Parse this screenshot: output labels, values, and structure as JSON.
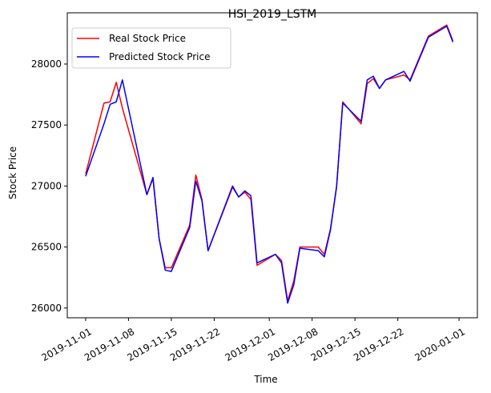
{
  "chart_data": {
    "type": "line",
    "title": "HSI_2019_LSTM",
    "xlabel": "Time",
    "ylabel": "Stock Price",
    "xlim": [
      "2019-10-29",
      "2020-01-04"
    ],
    "ylim": [
      25920,
      28420
    ],
    "xticks": [
      "2019-11-01",
      "2019-11-08",
      "2019-11-15",
      "2019-11-22",
      "2019-12-01",
      "2019-12-08",
      "2019-12-15",
      "2019-12-22",
      "2020-01-01"
    ],
    "yticks": [
      26000,
      26500,
      27000,
      27500,
      28000
    ],
    "legend": "upper-left",
    "grid": false,
    "series": [
      {
        "name": "Real Stock Price",
        "color": "#ff0000",
        "points": [
          [
            "2019-11-01",
            27100
          ],
          [
            "2019-11-04",
            27680
          ],
          [
            "2019-11-05",
            27690
          ],
          [
            "2019-11-06",
            27850
          ],
          [
            "2019-11-07",
            27640
          ],
          [
            "2019-11-11",
            26930
          ],
          [
            "2019-11-12",
            27060
          ],
          [
            "2019-11-13",
            26570
          ],
          [
            "2019-11-14",
            26330
          ],
          [
            "2019-11-15",
            26330
          ],
          [
            "2019-11-18",
            26680
          ],
          [
            "2019-11-19",
            27090
          ],
          [
            "2019-11-20",
            26890
          ],
          [
            "2019-11-21",
            26470
          ],
          [
            "2019-11-25",
            26990
          ],
          [
            "2019-11-26",
            26910
          ],
          [
            "2019-11-27",
            26950
          ],
          [
            "2019-11-28",
            26890
          ],
          [
            "2019-11-29",
            26350
          ],
          [
            "2019-12-02",
            26440
          ],
          [
            "2019-12-03",
            26390
          ],
          [
            "2019-12-04",
            26060
          ],
          [
            "2019-12-05",
            26220
          ],
          [
            "2019-12-06",
            26500
          ],
          [
            "2019-12-09",
            26500
          ],
          [
            "2019-12-10",
            26440
          ],
          [
            "2019-12-11",
            26650
          ],
          [
            "2019-12-12",
            26990
          ],
          [
            "2019-12-13",
            27690
          ],
          [
            "2019-12-16",
            27510
          ],
          [
            "2019-12-17",
            27840
          ],
          [
            "2019-12-18",
            27880
          ],
          [
            "2019-12-19",
            27800
          ],
          [
            "2019-12-20",
            27870
          ],
          [
            "2019-12-23",
            27910
          ],
          [
            "2019-12-24",
            27870
          ],
          [
            "2019-12-27",
            28230
          ],
          [
            "2019-12-30",
            28320
          ],
          [
            "2019-12-31",
            28190
          ]
        ]
      },
      {
        "name": "Predicted Stock Price",
        "color": "#0000ff",
        "points": [
          [
            "2019-11-01",
            27080
          ],
          [
            "2019-11-04",
            27510
          ],
          [
            "2019-11-05",
            27670
          ],
          [
            "2019-11-06",
            27690
          ],
          [
            "2019-11-07",
            27870
          ],
          [
            "2019-11-11",
            26930
          ],
          [
            "2019-11-12",
            27070
          ],
          [
            "2019-11-13",
            26570
          ],
          [
            "2019-11-14",
            26310
          ],
          [
            "2019-11-15",
            26300
          ],
          [
            "2019-11-18",
            26660
          ],
          [
            "2019-11-19",
            27040
          ],
          [
            "2019-11-20",
            26880
          ],
          [
            "2019-11-21",
            26470
          ],
          [
            "2019-11-25",
            27000
          ],
          [
            "2019-11-26",
            26910
          ],
          [
            "2019-11-27",
            26960
          ],
          [
            "2019-11-28",
            26920
          ],
          [
            "2019-11-29",
            26370
          ],
          [
            "2019-12-02",
            26440
          ],
          [
            "2019-12-03",
            26370
          ],
          [
            "2019-12-04",
            26040
          ],
          [
            "2019-12-05",
            26190
          ],
          [
            "2019-12-06",
            26490
          ],
          [
            "2019-12-09",
            26470
          ],
          [
            "2019-12-10",
            26420
          ],
          [
            "2019-12-11",
            26640
          ],
          [
            "2019-12-12",
            27000
          ],
          [
            "2019-12-13",
            27680
          ],
          [
            "2019-12-16",
            27530
          ],
          [
            "2019-12-17",
            27870
          ],
          [
            "2019-12-18",
            27900
          ],
          [
            "2019-12-19",
            27800
          ],
          [
            "2019-12-20",
            27870
          ],
          [
            "2019-12-23",
            27940
          ],
          [
            "2019-12-24",
            27860
          ],
          [
            "2019-12-27",
            28220
          ],
          [
            "2019-12-30",
            28310
          ],
          [
            "2019-12-31",
            28180
          ]
        ]
      }
    ]
  }
}
